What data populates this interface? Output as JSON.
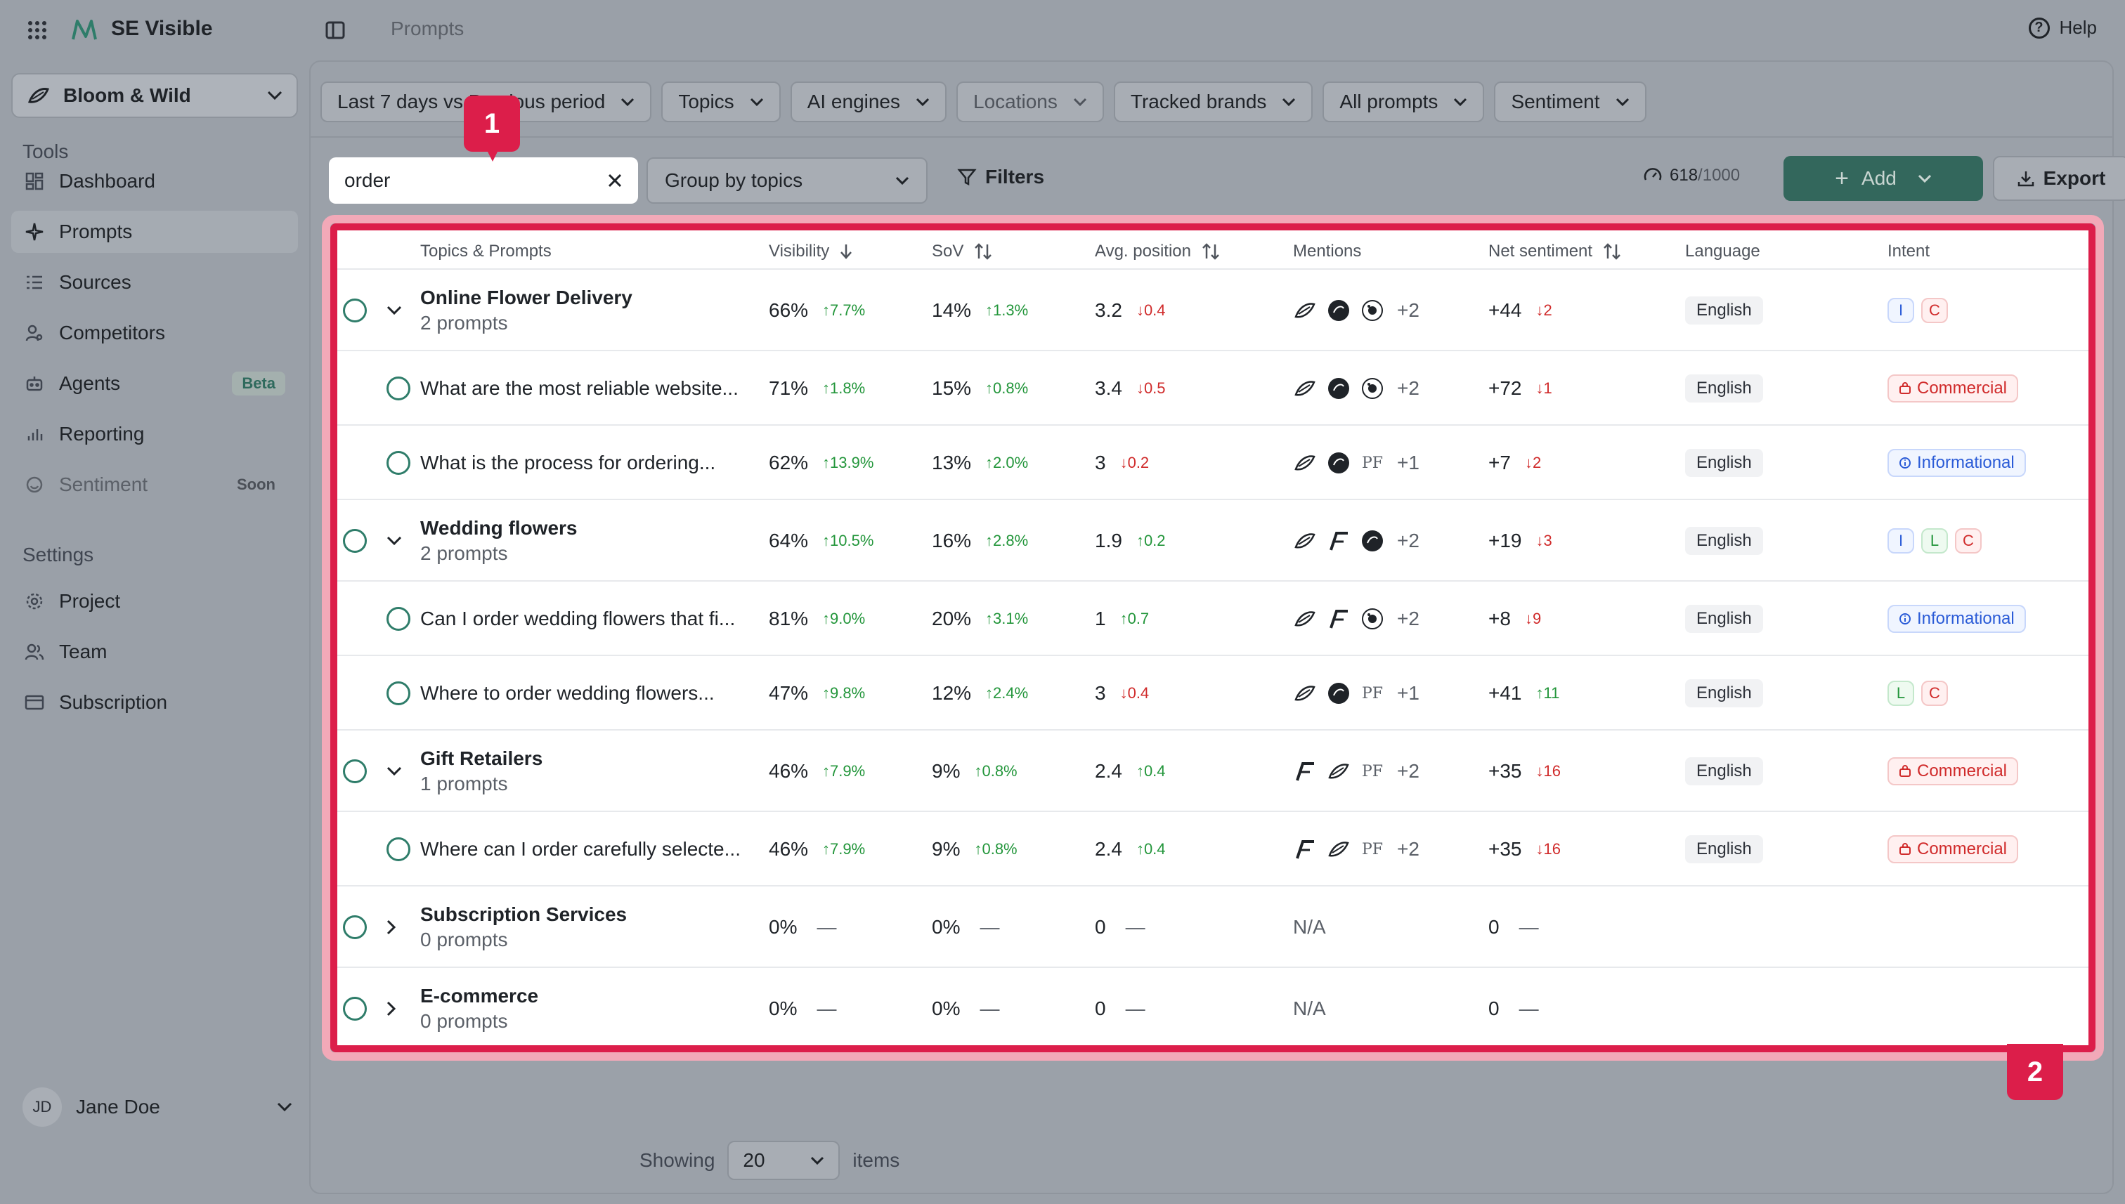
{
  "app": {
    "name": "SE Visible",
    "breadcrumb": "Prompts",
    "help": "Help"
  },
  "sidebar": {
    "project": "Bloom & Wild",
    "tools_label": "Tools",
    "settings_label": "Settings",
    "tools": [
      {
        "label": "Dashboard"
      },
      {
        "label": "Prompts"
      },
      {
        "label": "Sources"
      },
      {
        "label": "Competitors"
      },
      {
        "label": "Agents",
        "badge": "Beta"
      },
      {
        "label": "Reporting"
      },
      {
        "label": "Sentiment",
        "badge": "Soon"
      }
    ],
    "settings": [
      {
        "label": "Project"
      },
      {
        "label": "Team"
      },
      {
        "label": "Subscription"
      }
    ],
    "user": {
      "initials": "JD",
      "name": "Jane Doe"
    }
  },
  "filters": {
    "period": "Last 7 days vs Previous period",
    "topics": "Topics",
    "engines": "AI engines",
    "locations": "Locations",
    "brands": "Tracked brands",
    "prompts": "All prompts",
    "sentiment": "Sentiment"
  },
  "toolbar": {
    "search_value": "order",
    "group_by": "Group by topics",
    "filters_label": "Filters",
    "quota_used": "618",
    "quota_limit": "/1000",
    "add_label": "Add",
    "export_label": "Export"
  },
  "callouts": {
    "one": "1",
    "two": "2"
  },
  "table": {
    "headers": {
      "topics": "Topics & Prompts",
      "visibility": "Visibility",
      "sov": "SoV",
      "avg_position": "Avg. position",
      "mentions": "Mentions",
      "net_sentiment": "Net sentiment",
      "language": "Language",
      "intent": "Intent"
    },
    "rows": [
      {
        "type": "topic",
        "title": "Online Flower Delivery",
        "sub": "2 prompts",
        "vis": "66%",
        "vis_d": "↑7.7%",
        "sov": "14%",
        "sov_d": "↑1.3%",
        "pos": "3.2",
        "pos_d": "↓0.4",
        "more": "+2",
        "sent": "+44",
        "sent_d": "↓2",
        "lang": "English"
      },
      {
        "type": "prompt",
        "title": "What are the most reliable website...",
        "vis": "71%",
        "vis_d": "↑1.8%",
        "sov": "15%",
        "sov_d": "↑0.8%",
        "pos": "3.4",
        "pos_d": "↓0.5",
        "more": "+2",
        "sent": "+72",
        "sent_d": "↓1",
        "lang": "English",
        "intent": "Commercial"
      },
      {
        "type": "prompt",
        "title": "What is the process for ordering...",
        "vis": "62%",
        "vis_d": "↑13.9%",
        "sov": "13%",
        "sov_d": "↑2.0%",
        "pos": "3",
        "pos_d": "↓0.2",
        "more": "+1",
        "pf": "PF",
        "sent": "+7",
        "sent_d": "↓2",
        "lang": "English",
        "intent": "Informational"
      },
      {
        "type": "topic",
        "title": "Wedding flowers",
        "sub": "2 prompts",
        "vis": "64%",
        "vis_d": "↑10.5%",
        "sov": "16%",
        "sov_d": "↑2.8%",
        "pos": "1.9",
        "pos_d": "↑0.2",
        "more": "+2",
        "sent": "+19",
        "sent_d": "↓3",
        "lang": "English",
        "ilc": [
          "I",
          "L",
          "C"
        ]
      },
      {
        "type": "prompt",
        "title": "Can I order wedding flowers that fi...",
        "vis": "81%",
        "vis_d": "↑9.0%",
        "sov": "20%",
        "sov_d": "↑3.1%",
        "pos": "1",
        "pos_d": "↑0.7",
        "more": "+2",
        "sent": "+8",
        "sent_d": "↓9",
        "lang": "English",
        "intent": "Informational"
      },
      {
        "type": "prompt",
        "title": "Where to order wedding flowers...",
        "vis": "47%",
        "vis_d": "↑9.8%",
        "sov": "12%",
        "sov_d": "↑2.4%",
        "pos": "3",
        "pos_d": "↓0.4",
        "more": "+1",
        "pf": "PF",
        "sent": "+41",
        "sent_d": "↑11",
        "lang": "English",
        "ilc": [
          "L",
          "C"
        ]
      },
      {
        "type": "topic",
        "title": "Gift Retailers",
        "sub": "1 prompts",
        "vis": "46%",
        "vis_d": "↑7.9%",
        "sov": "9%",
        "sov_d": "↑0.8%",
        "pos": "2.4",
        "pos_d": "↑0.4",
        "more": "+2",
        "pf": "PF",
        "sent": "+35",
        "sent_d": "↓16",
        "lang": "English",
        "intent": "Commercial"
      },
      {
        "type": "prompt",
        "title": "Where can I order carefully selecte...",
        "vis": "46%",
        "vis_d": "↑7.9%",
        "sov": "9%",
        "sov_d": "↑0.8%",
        "pos": "2.4",
        "pos_d": "↑0.4",
        "more": "+2",
        "pf": "PF",
        "sent": "+35",
        "sent_d": "↓16",
        "lang": "English",
        "intent": "Commercial"
      },
      {
        "type": "topic-empty",
        "title": "Subscription Services",
        "sub": "0 prompts",
        "vis": "0%",
        "sov": "0%",
        "pos": "0",
        "na": "N/A",
        "sent": "0",
        "dash": "—"
      },
      {
        "type": "topic-empty",
        "title": "E-commerce",
        "sub": "0 prompts",
        "vis": "0%",
        "sov": "0%",
        "pos": "0",
        "na": "N/A",
        "sent": "0",
        "dash": "—"
      }
    ]
  },
  "pagination": {
    "showing": "Showing",
    "per_page": "20",
    "items": "items"
  },
  "colors": {
    "accent": "#33675c",
    "highlight": "#dc1e4a",
    "up": "#23963b",
    "down": "#d02b2b"
  }
}
